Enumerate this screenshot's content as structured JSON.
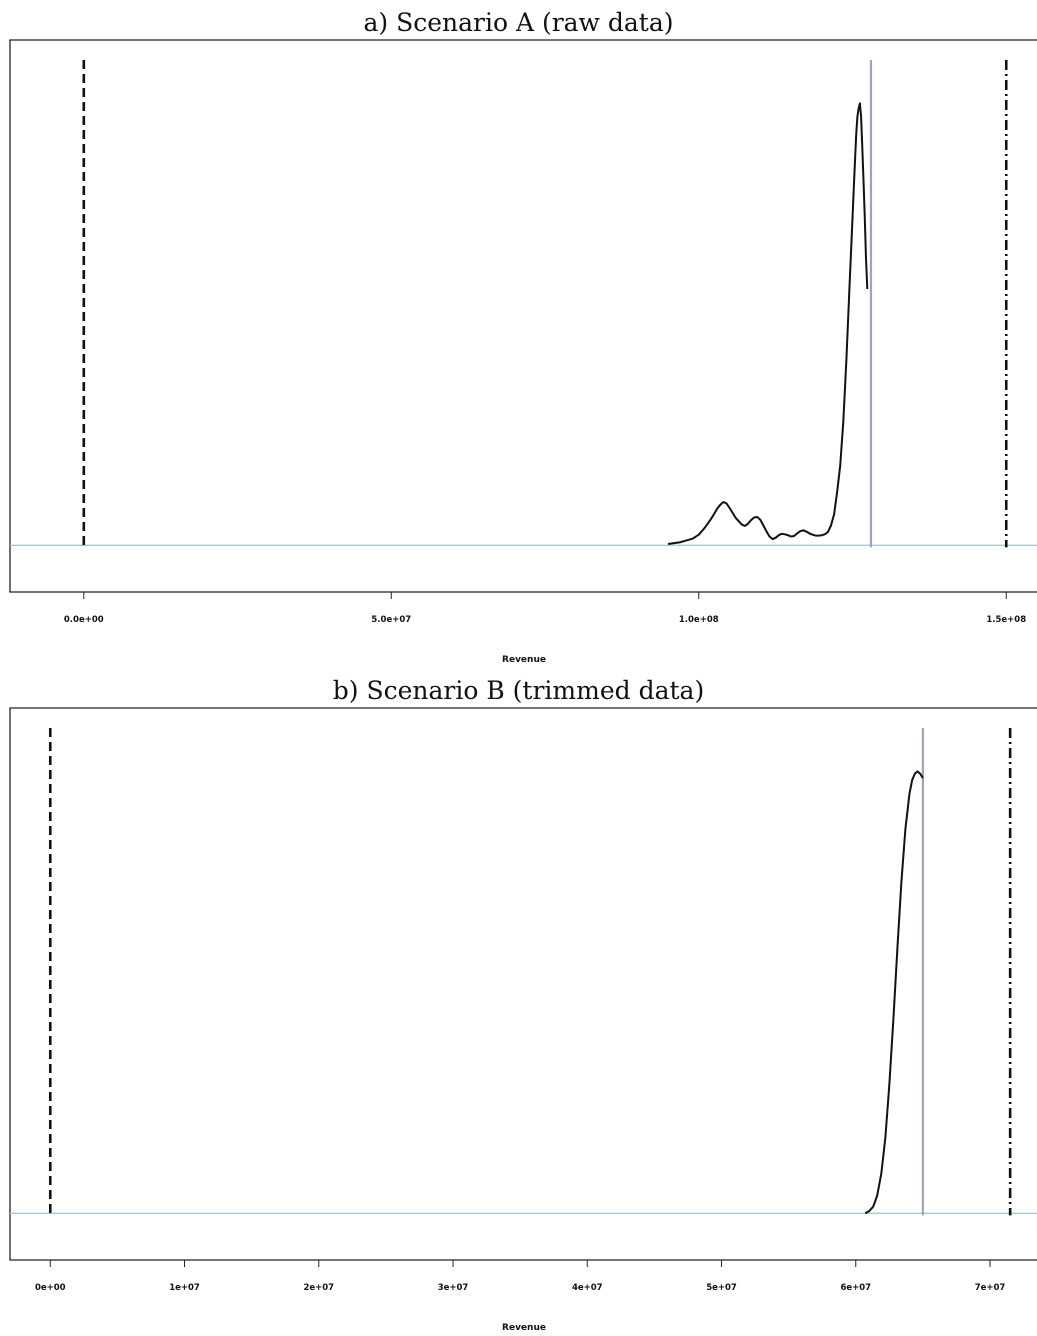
{
  "chart_data": [
    {
      "type": "line",
      "title": "a) Scenario A (raw data)",
      "xlabel": "Revenue",
      "ylabel": "",
      "xlim": [
        -12000000.0,
        155000000.0
      ],
      "ylim": [
        -0.04,
        1.05
      ],
      "ticks": [
        {
          "value": 0,
          "label": "0.0e+00"
        },
        {
          "value": 50000000,
          "label": "5.0e+07"
        },
        {
          "value": 100000000,
          "label": "1.0e+08"
        },
        {
          "value": 150000000,
          "label": "1.5e+08"
        }
      ],
      "series": [
        {
          "kind": "density",
          "color": "#111111",
          "x": [
            95000000,
            97000000,
            99000000,
            100000000,
            101000000,
            102000000,
            102500000,
            103000000,
            103500000,
            104000000,
            104500000,
            105000000,
            106000000,
            107000000,
            107500000,
            108000000,
            108500000,
            109000000,
            109500000,
            110000000,
            110500000,
            111000000,
            111500000,
            112000000,
            112500000,
            113000000,
            113500000,
            114000000,
            114500000,
            115000000,
            115500000,
            116000000,
            116500000,
            117000000,
            117500000,
            118000000,
            118500000,
            119000000,
            119500000,
            120000000,
            120500000,
            121000000,
            121500000,
            122000000,
            122500000,
            123000000,
            123500000,
            124000000,
            124500000,
            125000000,
            125300000,
            125600000,
            125800000,
            126000000,
            126200000,
            126400000,
            126600000,
            126800000,
            127000000,
            127200000,
            127400000
          ],
          "y": [
            0.003,
            0.007,
            0.015,
            0.024,
            0.04,
            0.06,
            0.071,
            0.083,
            0.092,
            0.098,
            0.095,
            0.085,
            0.062,
            0.047,
            0.044,
            0.049,
            0.057,
            0.063,
            0.064,
            0.058,
            0.045,
            0.032,
            0.02,
            0.014,
            0.017,
            0.023,
            0.026,
            0.025,
            0.023,
            0.02,
            0.021,
            0.027,
            0.032,
            0.034,
            0.031,
            0.027,
            0.024,
            0.022,
            0.022,
            0.023,
            0.025,
            0.03,
            0.045,
            0.07,
            0.12,
            0.18,
            0.28,
            0.42,
            0.58,
            0.74,
            0.84,
            0.93,
            0.97,
            0.99,
            1.0,
            0.97,
            0.9,
            0.82,
            0.74,
            0.65,
            0.58
          ]
        }
      ],
      "reference_lines": [
        {
          "name": "dashed",
          "x": 0,
          "style": "dashed",
          "color": "#111111"
        },
        {
          "name": "solid",
          "x": 128000000,
          "style": "solid",
          "color": "#a89cc6"
        },
        {
          "name": "dot-dash",
          "x": 150000000,
          "style": "dotdash",
          "color": "#111111"
        }
      ],
      "baseline_color": "#a9c7d4"
    },
    {
      "type": "line",
      "title": "b) Scenario B (trimmed data)",
      "xlabel": "Revenue",
      "ylabel": "",
      "xlim": [
        -3000000,
        73500000
      ],
      "ylim": [
        -0.04,
        1.05
      ],
      "ticks": [
        {
          "value": 0,
          "label": "0e+00"
        },
        {
          "value": 10000000,
          "label": "1e+07"
        },
        {
          "value": 20000000,
          "label": "2e+07"
        },
        {
          "value": 30000000,
          "label": "3e+07"
        },
        {
          "value": 40000000,
          "label": "4e+07"
        },
        {
          "value": 50000000,
          "label": "5e+07"
        },
        {
          "value": 60000000,
          "label": "6e+07"
        },
        {
          "value": 70000000,
          "label": "7e+07"
        }
      ],
      "series": [
        {
          "kind": "density",
          "color": "#111111",
          "x": [
            60700000,
            61000000,
            61300000,
            61600000,
            61900000,
            62200000,
            62500000,
            62800000,
            63100000,
            63400000,
            63700000,
            64000000,
            64200000,
            64400000,
            64600000,
            64800000,
            65000000
          ],
          "y": [
            0.0,
            0.005,
            0.015,
            0.04,
            0.09,
            0.17,
            0.29,
            0.44,
            0.6,
            0.75,
            0.87,
            0.95,
            0.98,
            0.995,
            1.0,
            0.995,
            0.985
          ]
        }
      ],
      "reference_lines": [
        {
          "name": "dashed",
          "x": 0,
          "style": "dashed",
          "color": "#111111"
        },
        {
          "name": "solid",
          "x": 65000000,
          "style": "solid",
          "color": "#a0a4b4"
        },
        {
          "name": "dot-dash",
          "x": 71500000,
          "style": "dotdash",
          "color": "#111111"
        }
      ],
      "baseline_color": "#a9c7d4"
    }
  ]
}
